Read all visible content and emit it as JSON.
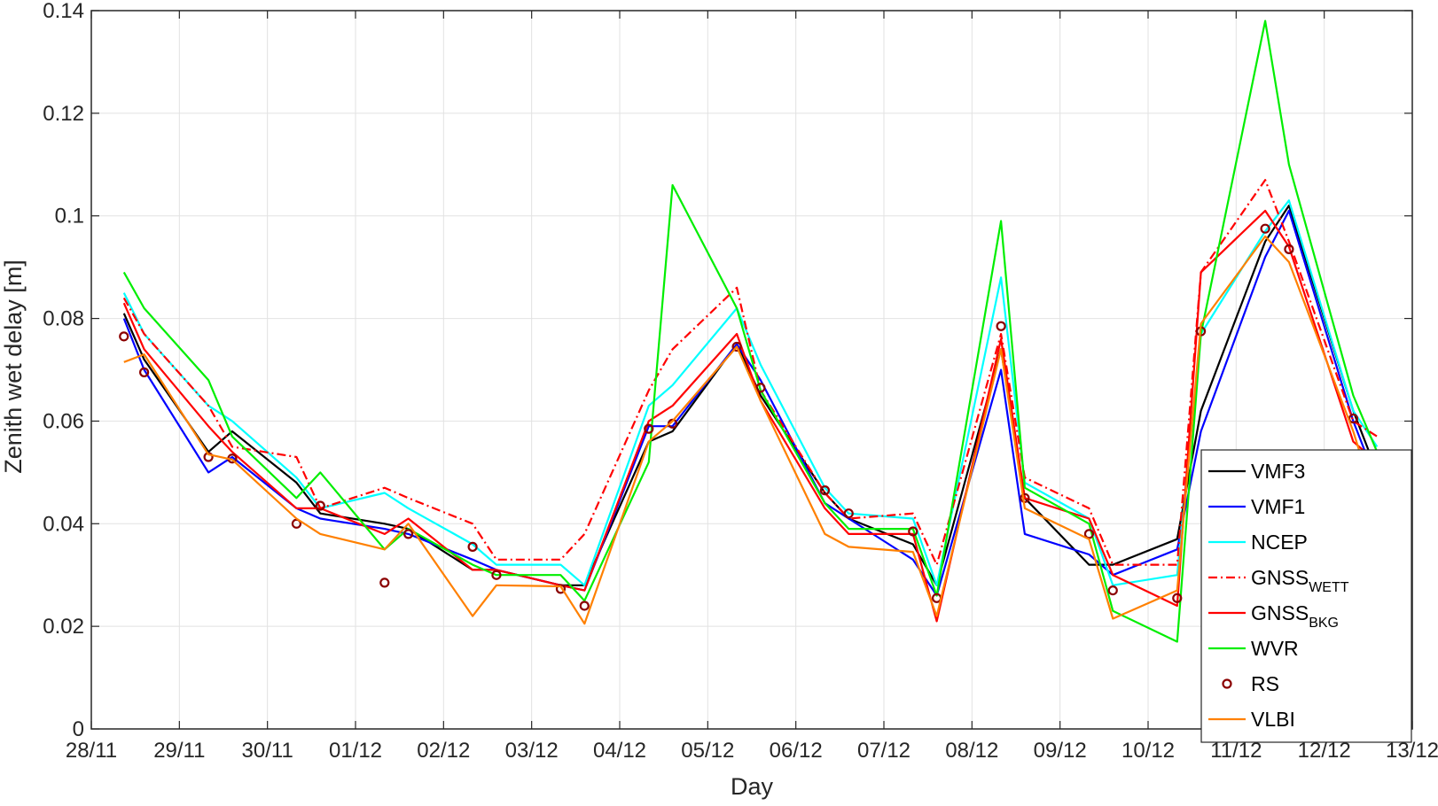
{
  "chart_data": {
    "type": "line",
    "xlabel": "Day",
    "ylabel": "Zenith wet delay [m]",
    "xlim": [
      0,
      15
    ],
    "ylim": [
      0,
      0.14
    ],
    "x_tick_labels": [
      "28/11",
      "29/11",
      "30/11",
      "01/12",
      "02/12",
      "03/12",
      "04/12",
      "05/12",
      "06/12",
      "07/12",
      "08/12",
      "09/12",
      "10/12",
      "11/12",
      "12/12",
      "13/12"
    ],
    "y_ticks": [
      0,
      0.02,
      0.04,
      0.06,
      0.08,
      0.1,
      0.12,
      0.14
    ],
    "y_tick_labels": [
      "0",
      "0.02",
      "0.04",
      "0.06",
      "0.08",
      "0.1",
      "0.12",
      "0.14"
    ],
    "grid": true,
    "legend_position": "bottom-right",
    "series": [
      {
        "name": "VMF3",
        "color": "#000000",
        "style": "solid",
        "marker": "none",
        "x": [
          0.37,
          0.6,
          1.33,
          1.6,
          2.33,
          2.6,
          3.33,
          3.6,
          4.33,
          4.6,
          5.33,
          5.6,
          6.33,
          6.6,
          7.33,
          7.6,
          8.33,
          8.6,
          9.33,
          9.6,
          10.33,
          10.6,
          11.33,
          11.6,
          12.33,
          12.6,
          13.33,
          13.6,
          14.33,
          14.6
        ],
        "y": [
          0.081,
          0.072,
          0.054,
          0.058,
          0.048,
          0.042,
          0.04,
          0.039,
          0.031,
          0.031,
          0.028,
          0.028,
          0.056,
          0.058,
          0.075,
          0.065,
          0.046,
          0.041,
          0.036,
          0.028,
          0.074,
          0.045,
          0.032,
          0.032,
          0.037,
          0.062,
          0.095,
          0.102,
          0.062,
          0.05
        ]
      },
      {
        "name": "VMF1",
        "color": "#0000ff",
        "style": "solid",
        "marker": "none",
        "x": [
          0.37,
          0.6,
          1.33,
          1.6,
          2.33,
          2.6,
          3.33,
          3.6,
          4.33,
          4.6,
          5.33,
          5.6,
          6.33,
          6.6,
          7.33,
          7.6,
          8.33,
          8.6,
          9.33,
          9.6,
          10.33,
          10.6,
          11.33,
          11.6,
          12.33,
          12.6,
          13.33,
          13.6,
          14.33,
          14.6
        ],
        "y": [
          0.08,
          0.07,
          0.05,
          0.053,
          0.043,
          0.041,
          0.039,
          0.038,
          0.033,
          0.031,
          0.028,
          0.027,
          0.059,
          0.059,
          0.075,
          0.068,
          0.044,
          0.041,
          0.033,
          0.026,
          0.07,
          0.038,
          0.034,
          0.03,
          0.035,
          0.058,
          0.092,
          0.101,
          0.06,
          0.048
        ]
      },
      {
        "name": "NCEP",
        "color": "#00ffff",
        "style": "solid",
        "marker": "none",
        "x": [
          0.37,
          0.6,
          1.33,
          1.6,
          2.33,
          2.6,
          3.33,
          3.6,
          4.33,
          4.6,
          5.33,
          5.6,
          6.33,
          6.6,
          7.33,
          7.6,
          8.33,
          8.6,
          9.33,
          9.6,
          10.33,
          10.6,
          11.33,
          11.6,
          12.33,
          12.6,
          13.33,
          13.6,
          14.33,
          14.6
        ],
        "y": [
          0.085,
          0.077,
          0.063,
          0.06,
          0.049,
          0.043,
          0.046,
          0.043,
          0.036,
          0.032,
          0.032,
          0.028,
          0.063,
          0.067,
          0.082,
          0.071,
          0.047,
          0.042,
          0.041,
          0.028,
          0.088,
          0.048,
          0.041,
          0.028,
          0.03,
          0.077,
          0.097,
          0.103,
          0.062,
          0.055
        ]
      },
      {
        "name": "GNSS_WETT",
        "display": "GNSS",
        "sub": "WETT",
        "color": "#ff0000",
        "style": "dashdot",
        "marker": "none",
        "x": [
          0.37,
          0.6,
          1.33,
          1.6,
          2.33,
          2.6,
          3.33,
          3.6,
          4.33,
          4.6,
          5.33,
          5.6,
          6.33,
          6.6,
          7.33,
          7.6,
          8.33,
          8.6,
          9.33,
          9.6,
          10.33,
          10.6,
          11.33,
          11.6,
          12.33,
          12.6,
          13.33,
          13.6,
          14.33,
          14.6
        ],
        "y": [
          0.084,
          0.077,
          0.063,
          0.055,
          0.053,
          0.043,
          0.047,
          0.045,
          0.04,
          0.033,
          0.033,
          0.038,
          0.066,
          0.074,
          0.086,
          0.066,
          0.046,
          0.041,
          0.042,
          0.032,
          0.077,
          0.049,
          0.043,
          0.032,
          0.032,
          0.089,
          0.107,
          0.095,
          0.06,
          0.057
        ]
      },
      {
        "name": "GNSS_BKG",
        "display": "GNSS",
        "sub": "BKG",
        "color": "#ff0000",
        "style": "solid",
        "marker": "none",
        "x": [
          0.37,
          0.6,
          1.33,
          1.6,
          2.33,
          2.6,
          3.33,
          3.6,
          4.33,
          4.6,
          5.33,
          5.6,
          6.33,
          6.6,
          7.33,
          7.6,
          8.33,
          8.6,
          9.33,
          9.6,
          10.33,
          10.6,
          11.33,
          11.6,
          12.33,
          12.6,
          13.33,
          13.6,
          14.33,
          14.6
        ],
        "y": [
          0.083,
          0.074,
          0.059,
          0.054,
          0.043,
          0.043,
          0.038,
          0.041,
          0.031,
          0.031,
          0.028,
          0.027,
          0.06,
          0.063,
          0.077,
          0.064,
          0.043,
          0.038,
          0.038,
          0.021,
          0.076,
          0.045,
          0.041,
          0.03,
          0.024,
          0.089,
          0.101,
          0.094,
          0.056,
          0.052
        ]
      },
      {
        "name": "WVR",
        "color": "#00ee00",
        "style": "solid",
        "marker": "none",
        "x": [
          0.37,
          0.6,
          1.33,
          1.6,
          2.33,
          2.6,
          3.33,
          3.6,
          4.33,
          4.6,
          5.33,
          5.6,
          6.33,
          6.6,
          7.33,
          7.6,
          8.33,
          8.6,
          9.33,
          9.6,
          10.33,
          10.6,
          11.33,
          11.6,
          12.33,
          12.6,
          13.33,
          13.6,
          14.33,
          14.6
        ],
        "y": [
          0.089,
          0.082,
          0.068,
          0.057,
          0.045,
          0.05,
          0.035,
          0.039,
          0.032,
          0.03,
          0.03,
          0.025,
          0.052,
          0.106,
          0.082,
          0.066,
          0.044,
          0.039,
          0.039,
          0.026,
          0.099,
          0.047,
          0.04,
          0.023,
          0.017,
          0.077,
          0.138,
          0.11,
          0.065,
          0.054
        ]
      },
      {
        "name": "RS",
        "color": "#8b0000",
        "style": "none",
        "marker": "circle",
        "x": [
          0.37,
          0.6,
          1.33,
          1.6,
          2.33,
          2.6,
          3.33,
          3.6,
          4.33,
          4.6,
          5.33,
          5.6,
          6.33,
          6.6,
          7.33,
          7.6,
          8.33,
          8.6,
          9.33,
          9.6,
          10.33,
          10.6,
          11.33,
          11.6,
          12.33,
          12.6,
          13.33,
          13.6,
          14.33,
          14.6
        ],
        "y": [
          0.0765,
          0.0695,
          0.053,
          0.0527,
          0.04,
          0.0435,
          0.0285,
          0.038,
          0.0355,
          0.03,
          0.0273,
          0.024,
          0.0585,
          0.0595,
          0.0745,
          0.0665,
          0.0465,
          0.042,
          0.0385,
          0.0255,
          0.0785,
          0.045,
          0.038,
          0.027,
          0.0255,
          0.0775,
          0.0975,
          0.0935,
          0.0605,
          0.0505
        ]
      },
      {
        "name": "VLBI",
        "color": "#ff8000",
        "style": "solid",
        "marker": "none",
        "x": [
          0.37,
          0.6,
          1.33,
          1.6,
          2.33,
          2.6,
          3.33,
          3.6,
          4.33,
          4.6,
          5.33,
          5.6,
          6.33,
          6.6,
          7.33,
          7.6,
          8.33,
          8.6,
          9.33,
          9.6,
          10.33,
          10.6,
          11.33,
          11.6,
          12.33,
          12.6,
          13.33,
          13.6,
          14.33,
          14.6
        ],
        "y": [
          0.0715,
          0.073,
          0.0535,
          0.0525,
          0.041,
          0.038,
          0.035,
          0.04,
          0.022,
          0.028,
          0.0278,
          0.0205,
          0.056,
          0.06,
          0.0745,
          0.064,
          0.038,
          0.0355,
          0.0345,
          0.022,
          0.074,
          0.043,
          0.037,
          0.0215,
          0.027,
          0.079,
          0.096,
          0.091,
          0.058,
          0.043
        ]
      }
    ]
  }
}
